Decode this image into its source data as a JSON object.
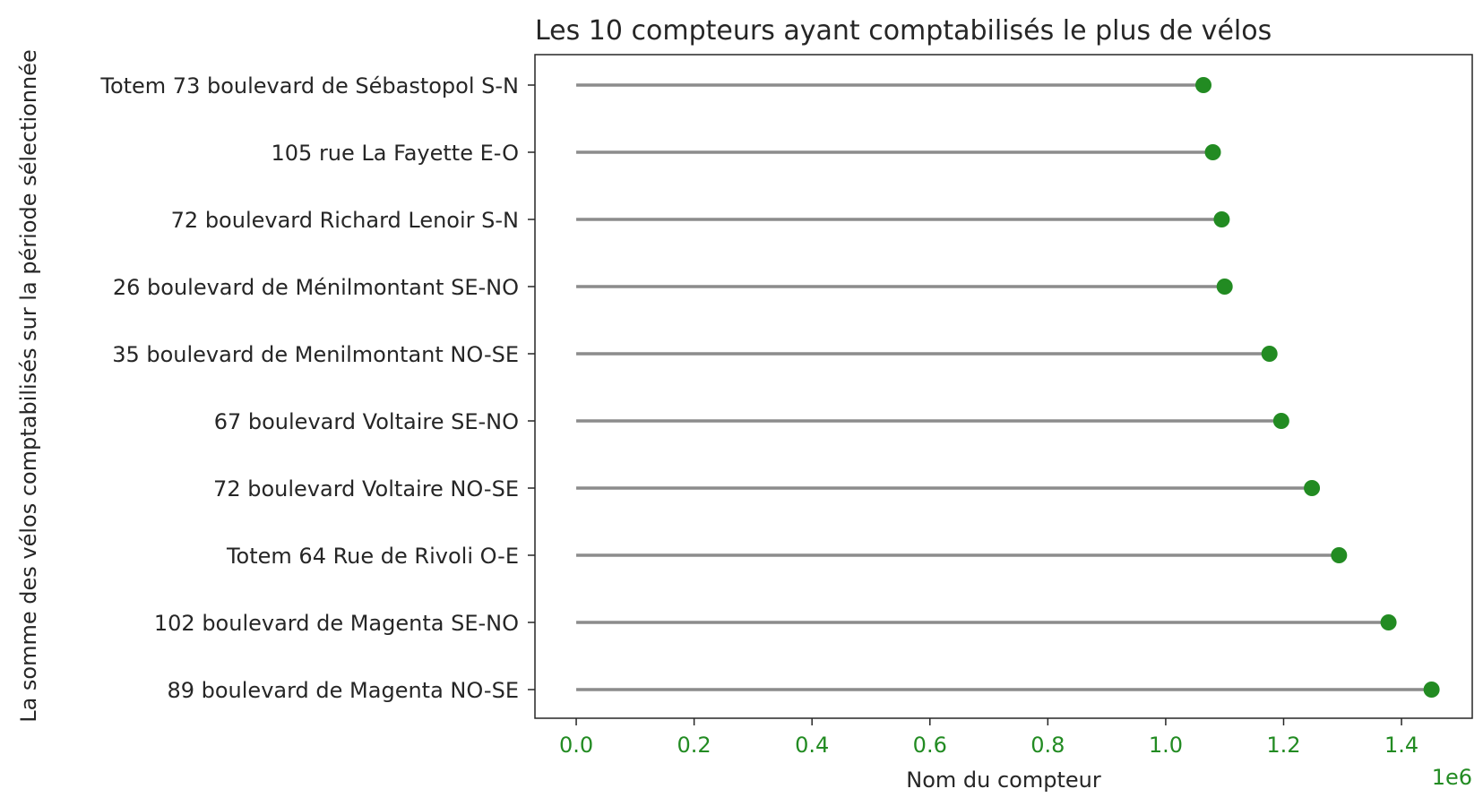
{
  "chart_data": {
    "type": "lollipop",
    "orientation": "horizontal",
    "title": "Les 10 compteurs ayant comptabilisés le plus de vélos",
    "xlabel": "Nom du compteur",
    "ylabel": "La somme des vélos comptabilisés sur la période sélectionnée",
    "x_offset_label": "1e6",
    "xlim": [
      -0.07,
      1.52
    ],
    "xticks": [
      0.0,
      0.2,
      0.4,
      0.6,
      0.8,
      1.0,
      1.2,
      1.4
    ],
    "xtick_labels": [
      "0.0",
      "0.2",
      "0.4",
      "0.6",
      "0.8",
      "1.0",
      "1.2",
      "1.4"
    ],
    "grid": false,
    "colors": {
      "stem": "#8c8c8c",
      "marker": "#228b22",
      "xtick_text": "#228b22",
      "text": "#262626",
      "spine": "#262626"
    },
    "categories": [
      "Totem 73 boulevard de Sébastopol S-N",
      "105 rue La Fayette E-O",
      "72 boulevard Richard Lenoir  S-N",
      "26 boulevard de Ménilmontant SE-NO",
      "35 boulevard de Menilmontant NO-SE",
      "67 boulevard Voltaire SE-NO",
      "72 boulevard Voltaire NO-SE",
      "Totem 64 Rue de Rivoli O-E",
      "102 boulevard de Magenta SE-NO",
      "89 boulevard de Magenta NO-SE"
    ],
    "values": [
      1.064,
      1.08,
      1.095,
      1.1,
      1.176,
      1.196,
      1.248,
      1.294,
      1.378,
      1.451
    ]
  }
}
